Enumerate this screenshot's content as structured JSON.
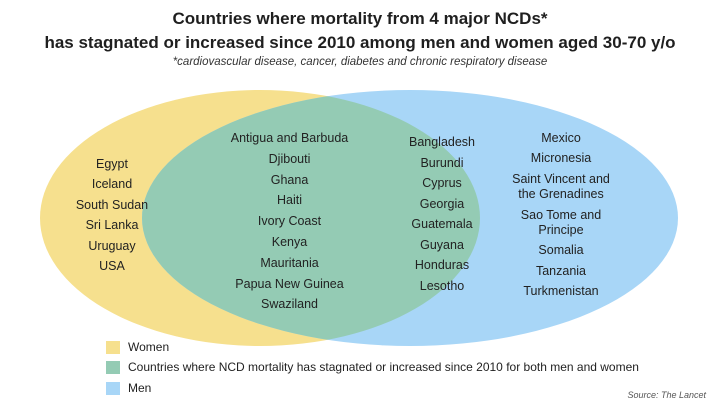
{
  "title_line1": "Countries where mortality from 4 major NCDs*",
  "title_line2": "has stagnated or increased since 2010 among men and women aged 30-70 y/o",
  "subtitle": "*cardiovascular disease, cancer, diabetes and chronic respiratory disease",
  "colors": {
    "women": "#f6e08e",
    "men": "#a8d6f7",
    "both": "#94cbb4"
  },
  "women_only": [
    "Egypt",
    "Iceland",
    "South Sudan",
    "Sri Lanka",
    "Uruguay",
    "USA"
  ],
  "both": [
    "Antigua and Barbuda",
    "Djibouti",
    "Ghana",
    "Haiti",
    "Ivory Coast",
    "Kenya",
    "Mauritania",
    "Papua New Guinea",
    "Swaziland"
  ],
  "men_only_col1": [
    "Bangladesh",
    "Burundi",
    "Cyprus",
    "Georgia",
    "Guatemala",
    "Guyana",
    "Honduras",
    "Lesotho"
  ],
  "men_only_col2": [
    "Mexico",
    "Micronesia",
    "Saint Vincent and the Grenadines",
    "Sao Tome and Principe",
    "Somalia",
    "Tanzania",
    "Turkmenistan"
  ],
  "legend": {
    "women": "Women",
    "both": "Countries where NCD mortality has stagnated or increased since 2010 for both men and women",
    "men": "Men"
  },
  "source": "Source: The Lancet"
}
